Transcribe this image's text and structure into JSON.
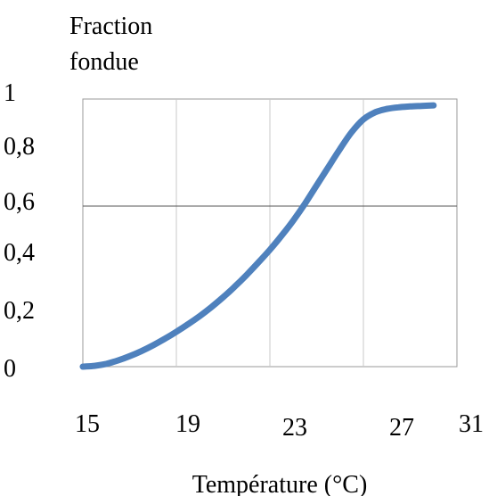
{
  "chart_data": {
    "type": "line",
    "ylabel_lines": [
      "Fraction",
      "fondue"
    ],
    "xlabel": "Température (°C)",
    "x_ticks": [
      "15",
      "19",
      "23",
      "27",
      "31"
    ],
    "y_ticks": [
      "0",
      "0,2",
      "0,4",
      "0,6",
      "0,8",
      "1"
    ],
    "xlim": [
      15,
      31
    ],
    "ylim": [
      0,
      1
    ],
    "grid": {
      "vertical": true,
      "horizontal_at": [
        0.6
      ]
    },
    "series": [
      {
        "color": "#4f81bd",
        "x": [
          15,
          15.5,
          16,
          16.5,
          17,
          17.5,
          18,
          18.5,
          19,
          19.5,
          20,
          20.5,
          21,
          21.5,
          22,
          22.5,
          23,
          23.5,
          24,
          24.5,
          25,
          25.5,
          26,
          26.5,
          27,
          27.5,
          28,
          28.5,
          29,
          29.5,
          30
        ],
        "y": [
          0.0,
          0.003,
          0.01,
          0.022,
          0.037,
          0.055,
          0.076,
          0.099,
          0.124,
          0.151,
          0.18,
          0.212,
          0.247,
          0.285,
          0.326,
          0.37,
          0.416,
          0.466,
          0.52,
          0.58,
          0.645,
          0.71,
          0.775,
          0.835,
          0.88,
          0.905,
          0.917,
          0.923,
          0.926,
          0.928,
          0.93
        ]
      }
    ]
  }
}
